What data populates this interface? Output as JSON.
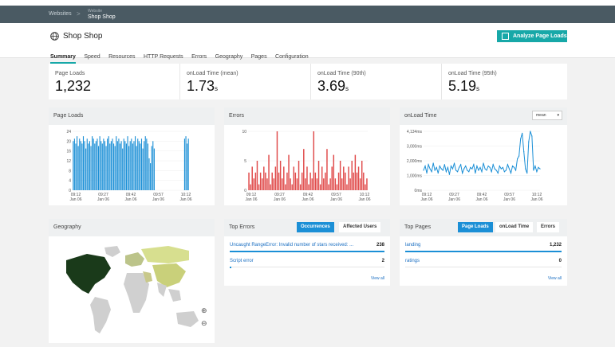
{
  "breadcrumb": {
    "root": "Websites",
    "separator": ">",
    "site_caption": "Website",
    "site_name": "Shop Shop"
  },
  "header": {
    "title": "Shop Shop",
    "analyze_label": "Analyze Page Loads"
  },
  "tabs": [
    "Summary",
    "Speed",
    "Resources",
    "HTTP Requests",
    "Errors",
    "Geography",
    "Pages",
    "Configuration"
  ],
  "stats": [
    {
      "label": "Page Loads",
      "value": "1,232",
      "unit": ""
    },
    {
      "label": "onLoad Time (mean)",
      "value": "1.73",
      "unit": "s"
    },
    {
      "label": "onLoad Time (90th)",
      "value": "3.69",
      "unit": "s"
    },
    {
      "label": "onLoad Time (95th)",
      "value": "5.19",
      "unit": "s"
    }
  ],
  "cards": {
    "page_loads": "Page Loads",
    "errors": "Errors",
    "onload": "onLoad Time",
    "onload_select": "mean",
    "geography": "Geography",
    "top_errors": "Top Errors",
    "top_pages": "Top Pages"
  },
  "top_errors": {
    "seg_on": "Occurrences",
    "seg_off": "Affected Users",
    "rows": [
      {
        "name": "Uncaught RangeError: Invalid number of stars received: ...",
        "value": "238",
        "fraction": 1.0
      },
      {
        "name": "Script error",
        "value": "2",
        "fraction": 0.01
      }
    ],
    "view_all": "View all"
  },
  "top_pages": {
    "seg_on": "Page Loads",
    "seg_mid": "onLoad Time",
    "seg_off": "Errors",
    "rows": [
      {
        "name": "landing",
        "value": "1,232",
        "fraction": 1.0
      },
      {
        "name": "ratings",
        "value": "0",
        "fraction": 0.0
      }
    ],
    "view_all": "View all"
  },
  "colors": {
    "accent": "#17a8a8",
    "bar_blue": "#1b8fd6",
    "bar_red": "#e04a4a",
    "nav": "#4a5a63"
  },
  "chart_data": [
    {
      "type": "bar",
      "name": "Page Loads",
      "ylim": [
        0,
        24
      ],
      "yticks": [
        "0",
        "4",
        "8",
        "12",
        "16",
        "20",
        "24"
      ],
      "xticks": [
        "09:12\nJan 06",
        "09:27\nJan 06",
        "09:42\nJan 06",
        "09:57\nJan 06",
        "10:12\nJan 06"
      ],
      "values": [
        20,
        21,
        19,
        22,
        18,
        21,
        20,
        19,
        22,
        20,
        17,
        21,
        19,
        20,
        18,
        22,
        21,
        19,
        20,
        21,
        18,
        22,
        20,
        19,
        21,
        20,
        18,
        21,
        22,
        19,
        20,
        21,
        19,
        18,
        22,
        20,
        21,
        19,
        20,
        17,
        21,
        20,
        19,
        22,
        18,
        20,
        21,
        19,
        20,
        22,
        18,
        21,
        20,
        19,
        21,
        17,
        20,
        22,
        21,
        19,
        13,
        11,
        18,
        20,
        17,
        0,
        0,
        0,
        0,
        0,
        0,
        0,
        0,
        0,
        0,
        0,
        0,
        0,
        0,
        0,
        0,
        0,
        0,
        0,
        0,
        0,
        0,
        0,
        21,
        22,
        19,
        21
      ]
    },
    {
      "type": "bar",
      "name": "Errors",
      "ylim": [
        0,
        10
      ],
      "yticks": [
        "0",
        "5",
        "10"
      ],
      "xticks": [
        "09:12\nJan 06",
        "09:27\nJan 06",
        "09:42\nJan 06",
        "09:57\nJan 06",
        "10:12\nJan 06"
      ],
      "values": [
        3,
        1,
        4,
        2,
        3,
        5,
        1,
        3,
        2,
        4,
        3,
        2,
        6,
        1,
        3,
        2,
        4,
        10,
        3,
        5,
        2,
        4,
        1,
        3,
        6,
        2,
        1,
        4,
        3,
        2,
        5,
        1,
        3,
        7,
        2,
        4,
        1,
        3,
        2,
        10,
        3,
        2,
        5,
        1,
        4,
        2,
        3,
        7,
        1,
        2,
        4,
        6,
        2,
        1,
        3,
        5,
        2,
        4,
        3,
        1,
        4,
        2,
        5,
        3,
        6,
        3,
        4,
        2,
        5,
        3,
        1,
        2
      ]
    },
    {
      "type": "line",
      "name": "onLoad Time",
      "ylim": [
        0,
        4134
      ],
      "yticks": [
        "0ms",
        "1,000ms",
        "2,000ms",
        "3,000ms",
        "4,134ms"
      ],
      "xticks": [
        "09:12\nJan 06",
        "09:27\nJan 06",
        "09:42\nJan 06",
        "09:57\nJan 06",
        "10:12\nJan 06"
      ],
      "values": [
        1400,
        1700,
        1200,
        1800,
        1500,
        1300,
        1900,
        1400,
        1600,
        1200,
        1700,
        1500,
        1400,
        1800,
        1300,
        1600,
        1100,
        1700,
        1500,
        1900,
        1400,
        1300,
        1600,
        1800,
        1200,
        1500,
        1700,
        1400,
        1300,
        1600,
        1500,
        1800,
        1200,
        1700,
        1400,
        1600,
        1300,
        1900,
        1500,
        1400,
        1700,
        1600,
        1300,
        1800,
        1500,
        1400,
        1200,
        1700,
        1500,
        1600,
        1300,
        1400,
        1800,
        1500,
        1200,
        1700,
        1600,
        1400,
        2200,
        2400,
        3600,
        4000,
        2700,
        1500,
        1200,
        3400,
        4134,
        3800,
        1400,
        1700,
        1300,
        1600,
        1500
      ]
    }
  ]
}
